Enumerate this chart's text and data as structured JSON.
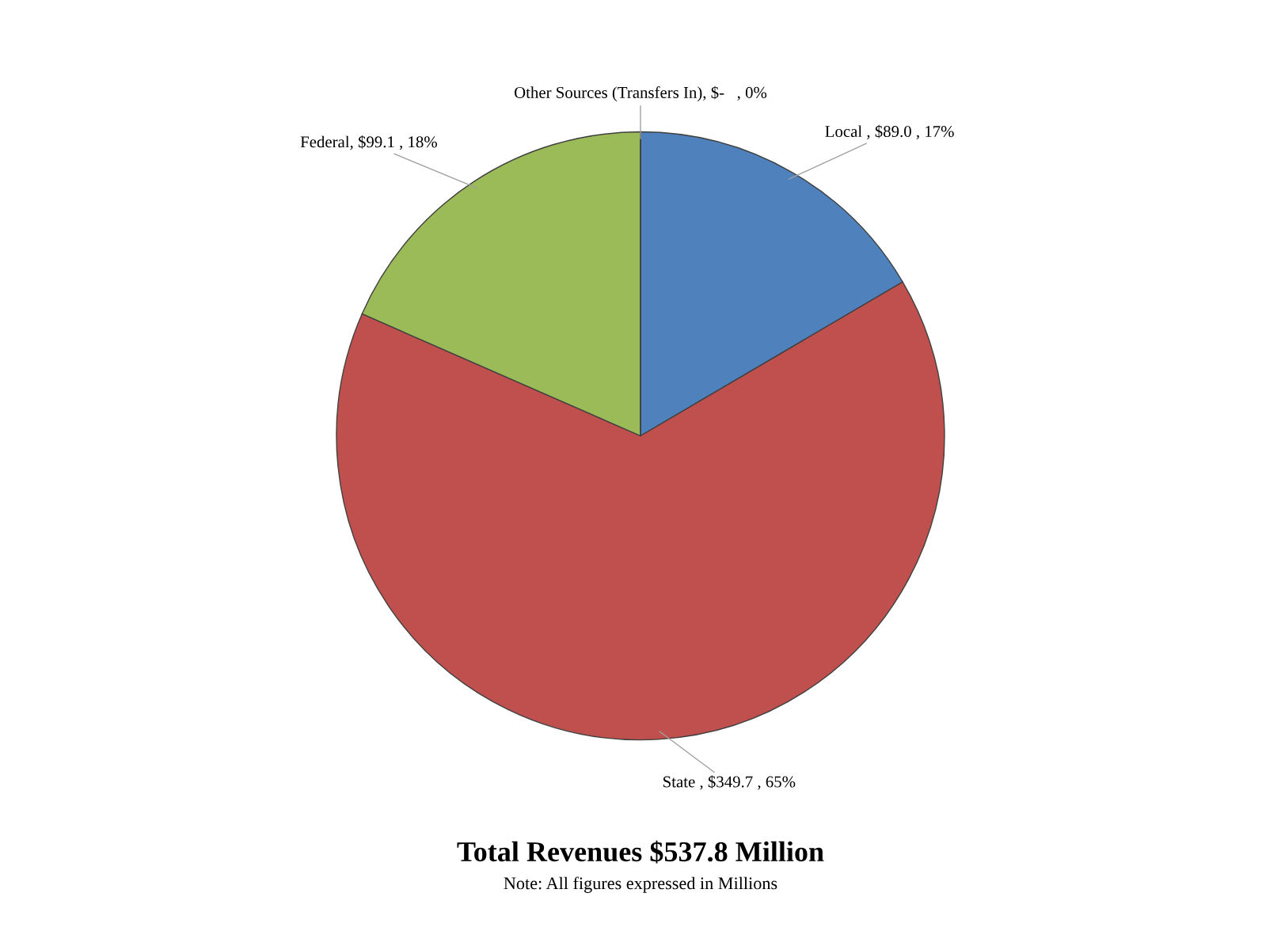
{
  "chart_data": {
    "type": "pie",
    "title": "Total Revenues $537.8 Million",
    "categories": [
      "Local ",
      "State ",
      "Federal",
      "Other Sources (Transfers In)"
    ],
    "values": [
      89.0,
      349.7,
      99.1,
      0
    ],
    "value_labels": [
      ", $89.0 , 17%",
      ", $349.7 , 65%",
      ", $99.1 , 18%",
      ", $-   , 0%"
    ],
    "colors": [
      "#4f81bd",
      "#c0504d",
      "#9bbb59",
      "#8064a2"
    ],
    "annotations": [
      "Note: All figures expressed in Millions"
    ]
  }
}
